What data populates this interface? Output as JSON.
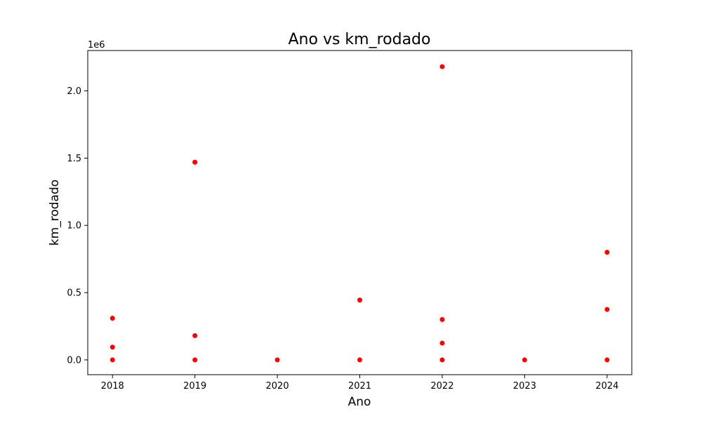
{
  "chart_data": {
    "type": "scatter",
    "title": "Ano vs km_rodado",
    "xlabel": "Ano",
    "ylabel": "km_rodado",
    "y_offset_label": "1e6",
    "xlim": [
      2017.7,
      2024.3
    ],
    "ylim": [
      -110000,
      2300000
    ],
    "x_ticks": [
      2018,
      2019,
      2020,
      2021,
      2022,
      2023,
      2024
    ],
    "x_tick_labels": [
      "2018",
      "2019",
      "2020",
      "2021",
      "2022",
      "2023",
      "2024"
    ],
    "y_ticks": [
      0,
      500000,
      1000000,
      1500000,
      2000000
    ],
    "y_tick_labels": [
      "0.0",
      "0.5",
      "1.0",
      "1.5",
      "2.0"
    ],
    "grid": false,
    "marker_color": "#ff0000",
    "points": [
      {
        "x": 2018,
        "y": 310000
      },
      {
        "x": 2018,
        "y": 95000
      },
      {
        "x": 2018,
        "y": 0
      },
      {
        "x": 2019,
        "y": 1470000
      },
      {
        "x": 2019,
        "y": 180000
      },
      {
        "x": 2019,
        "y": 0
      },
      {
        "x": 2020,
        "y": 0
      },
      {
        "x": 2021,
        "y": 445000
      },
      {
        "x": 2021,
        "y": 0
      },
      {
        "x": 2022,
        "y": 2180000
      },
      {
        "x": 2022,
        "y": 300000
      },
      {
        "x": 2022,
        "y": 125000
      },
      {
        "x": 2022,
        "y": 0
      },
      {
        "x": 2023,
        "y": 0
      },
      {
        "x": 2024,
        "y": 800000
      },
      {
        "x": 2024,
        "y": 375000
      },
      {
        "x": 2024,
        "y": 0
      }
    ]
  }
}
